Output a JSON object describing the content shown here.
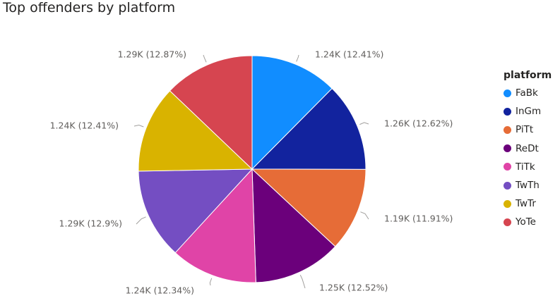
{
  "title": "Top offenders by platform",
  "legend": {
    "title": "platform"
  },
  "chart_data": {
    "type": "pie",
    "title": "Top offenders by platform",
    "legend_title": "platform",
    "legend_position": "right",
    "slices": [
      {
        "name": "FaBk",
        "value": 1240,
        "percent": 12.41,
        "label": "1.24K (12.41%)",
        "color": "#118DFF"
      },
      {
        "name": "InGm",
        "value": 1260,
        "percent": 12.62,
        "label": "1.26K (12.62%)",
        "color": "#12239E"
      },
      {
        "name": "PiTt",
        "value": 1190,
        "percent": 11.91,
        "label": "1.19K (11.91%)",
        "color": "#E66C37"
      },
      {
        "name": "ReDt",
        "value": 1250,
        "percent": 12.52,
        "label": "1.25K (12.52%)",
        "color": "#6B007B"
      },
      {
        "name": "TiTk",
        "value": 1240,
        "percent": 12.34,
        "label": "1.24K (12.34%)",
        "color": "#E044A7"
      },
      {
        "name": "TwTh",
        "value": 1290,
        "percent": 12.9,
        "label": "1.29K (12.9%)",
        "color": "#744EC2"
      },
      {
        "name": "TwTr",
        "value": 1240,
        "percent": 12.41,
        "label": "1.24K (12.41%)",
        "color": "#D9B300"
      },
      {
        "name": "YoTe",
        "value": 1290,
        "percent": 12.87,
        "label": "1.29K (12.87%)",
        "color": "#D64550"
      }
    ]
  }
}
